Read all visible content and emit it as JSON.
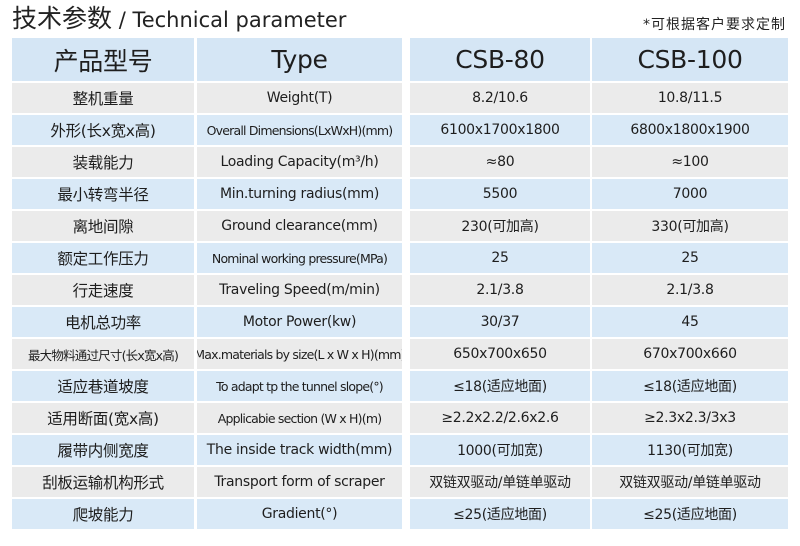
{
  "title": {
    "zh": "技术参数",
    "sep": " / ",
    "en": "Technical parameter"
  },
  "note": "*可根据客户要求定制",
  "header": {
    "name_zh": "产品型号",
    "name_en": "Type",
    "models": [
      "CSB-80",
      "CSB-100"
    ]
  },
  "rows": [
    {
      "zh": "整机重量",
      "en": "Weight(T)",
      "v1": "8.2/10.6",
      "v2": "10.8/11.5"
    },
    {
      "zh": "外形(长x宽x高)",
      "en": "Overall Dimensions(LxWxH)(mm)",
      "v1": "6100x1700x1800",
      "v2": "6800x1800x1900"
    },
    {
      "zh": "装载能力",
      "en": "Loading Capacity(m³/h)",
      "v1": "≈80",
      "v2": "≈100"
    },
    {
      "zh": "最小转弯半径",
      "en": "Min.turning radius(mm)",
      "v1": "5500",
      "v2": "7000"
    },
    {
      "zh": "离地间隙",
      "en": "Ground clearance(mm)",
      "v1": "230(可加高)",
      "v2": "330(可加高)"
    },
    {
      "zh": "额定工作压力",
      "en": "Nominal working pressure(MPa)",
      "v1": "25",
      "v2": "25"
    },
    {
      "zh": "行走速度",
      "en": "Traveling Speed(m/min)",
      "v1": "2.1/3.8",
      "v2": "2.1/3.8"
    },
    {
      "zh": "电机总功率",
      "en": "Motor Power(kw)",
      "v1": "30/37",
      "v2": "45"
    },
    {
      "zh": "最大物料通过尺寸(长x宽x高)",
      "en": "Max.materials by size(L x W x H)(mm)",
      "v1": "650x700x650",
      "v2": "670x700x660"
    },
    {
      "zh": "适应巷道坡度",
      "en": "To adapt tp the tunnel slope(°)",
      "v1": "≤18(适应地面)",
      "v2": "≤18(适应地面)"
    },
    {
      "zh": "适用断面(宽x高)",
      "en": "Applicabie section (W x H)(m)",
      "v1": "≥2.2x2.2/2.6x2.6",
      "v2": "≥2.3x2.3/3x3"
    },
    {
      "zh": "履带内侧宽度",
      "en": "The inside track width(mm)",
      "v1": "1000(可加宽)",
      "v2": "1130(可加宽)"
    },
    {
      "zh": "刮板运输机构形式",
      "en": "Transport form of scraper",
      "v1": "双链双驱动/单链单驱动",
      "v2": "双链双驱动/单链单驱动"
    },
    {
      "zh": "爬坡能力",
      "en": "Gradient(°)",
      "v1": "≤25(适应地面)",
      "v2": "≤25(适应地面)"
    }
  ],
  "colors": {
    "header": "#d5e6f5",
    "row_gray": "#ebebeb",
    "row_blue": "#d9e9f7"
  }
}
